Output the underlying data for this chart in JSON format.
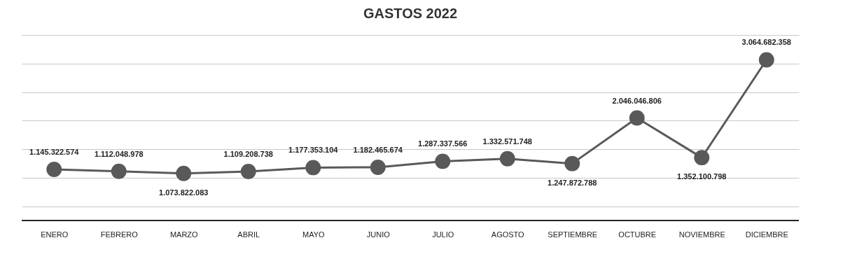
{
  "chart_data": {
    "type": "line",
    "title": "GASTOS 2022",
    "categories": [
      "ENERO",
      "FEBRERO",
      "MARZO",
      "ABRIL",
      "MAYO",
      "JUNIO",
      "JULIO",
      "AGOSTO",
      "SEPTIEMBRE",
      "OCTUBRE",
      "NOVIEMBRE",
      "DICIEMBRE"
    ],
    "series": [
      {
        "color": "#595959",
        "values": [
          1145322574,
          1112048978,
          1073822083,
          1109208738,
          1177353104,
          1182465674,
          1287337566,
          1332571748,
          1247872788,
          2046046806,
          1352100798,
          3064682358
        ],
        "value_labels": [
          "1.145.322.574",
          "1.112.048.978",
          "1.073.822.083",
          "1.109.208.738",
          "1.177.353.104",
          "1.182.465.674",
          "1.287.337.566",
          "1.332.571.748",
          "1.247.872.788",
          "2.046.046.806",
          "1.352.100.798",
          "3.064.682.358"
        ]
      }
    ],
    "ylim": [
      250000000,
      3500000000
    ],
    "yticks": [
      {
        "value": 500000000,
        "label": null
      },
      {
        "value": 1000000000,
        "label": null
      },
      {
        "value": 1500000000,
        "label": null
      },
      {
        "value": 2000000000,
        "label": null
      },
      {
        "value": 2500000000,
        "label": null
      },
      {
        "value": 3000000000,
        "label": null
      },
      {
        "value": 3500000000,
        "label": null
      }
    ],
    "grid": "y",
    "tick_labels": "x",
    "marker": "circle",
    "line_style": "solid"
  }
}
